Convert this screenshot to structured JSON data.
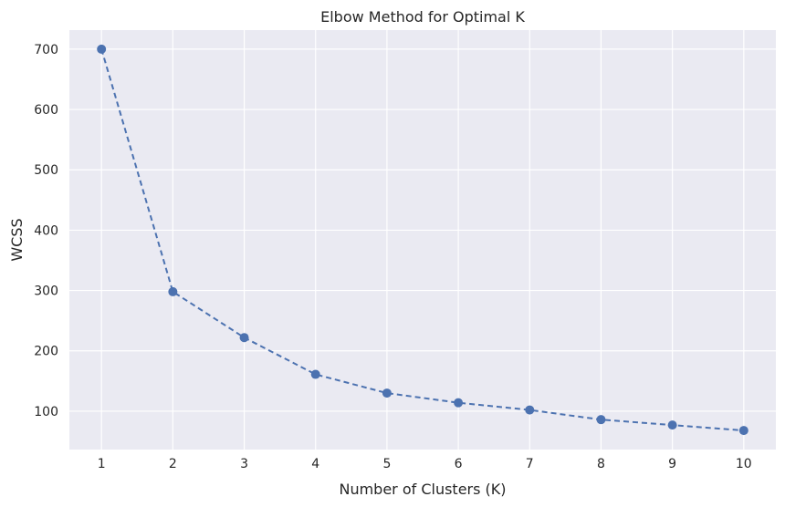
{
  "chart_data": {
    "type": "line",
    "title": "Elbow Method for Optimal K",
    "xlabel": "Number of Clusters (K)",
    "ylabel": "WCSS",
    "x": [
      1,
      2,
      3,
      4,
      5,
      6,
      7,
      8,
      9,
      10
    ],
    "series": [
      {
        "values": [
          700,
          298,
          222,
          161,
          130,
          114,
          102,
          86,
          77,
          68
        ],
        "line_style": "dashed",
        "marker": "circle"
      }
    ],
    "xticks": [
      1,
      2,
      3,
      4,
      5,
      6,
      7,
      8,
      9,
      10
    ],
    "yticks": [
      100,
      200,
      300,
      400,
      500,
      600,
      700
    ],
    "xlim": [
      0.55,
      10.45
    ],
    "ylim": [
      36.4,
      731.6
    ],
    "grid": true,
    "colors": {
      "background": "#eaeaf2",
      "grid": "#ffffff",
      "series": "#4c72b0",
      "text": "#262626"
    }
  }
}
